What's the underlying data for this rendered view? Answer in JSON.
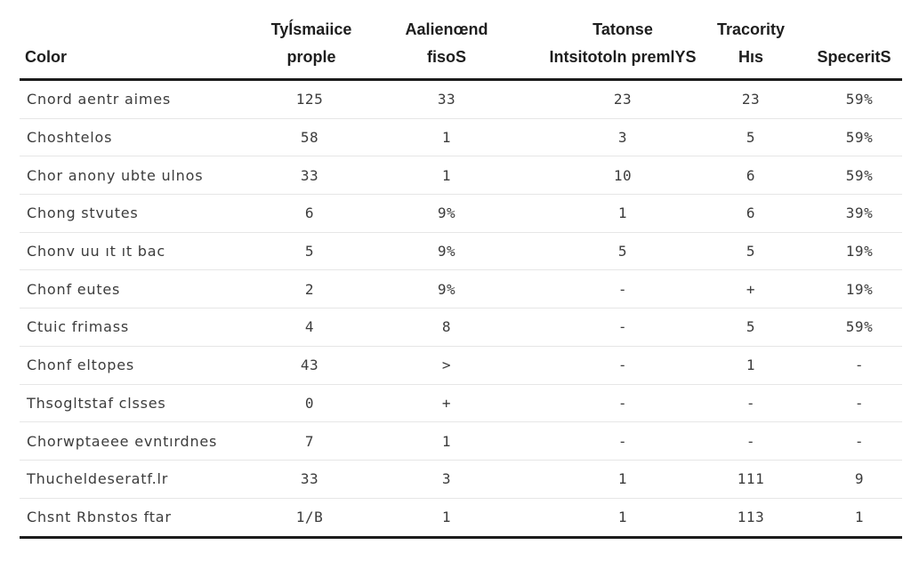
{
  "table": {
    "headers": [
      {
        "line1": "",
        "line2": "Color"
      },
      {
        "line1": "Tyĺsmaiice",
        "line2": "prople"
      },
      {
        "line1": "Aalienœnd",
        "line2": "fisoS"
      },
      {
        "line1": "Tatonse",
        "line2": "Intsitotoln premlYS"
      },
      {
        "line1": "Tracority",
        "line2": "Hıs"
      },
      {
        "line1": "",
        "line2": "SpeceritS"
      }
    ],
    "rows": [
      [
        "Cnord aentr aimes",
        "125",
        "33",
        "23",
        "23",
        "59%"
      ],
      [
        "Choshtelos",
        "58",
        "1",
        "3",
        "5",
        "59%"
      ],
      [
        "Chor anony ubte ulnos",
        "33",
        "1",
        "10",
        "6",
        "59%"
      ],
      [
        "Chong stvutes",
        "6",
        "9%",
        "1",
        "6",
        "39%"
      ],
      [
        "Chonv uu ıt ıt bac",
        "5",
        "9%",
        "5",
        "5",
        "19%"
      ],
      [
        "Chonf eutes",
        "2",
        "9%",
        "-",
        "+",
        "19%"
      ],
      [
        "Ctuic frimass",
        "4",
        "8",
        "-",
        "5",
        "59%"
      ],
      [
        "Chonf eltopes",
        "43",
        ">",
        "-",
        "1",
        "-"
      ],
      [
        "Thsogltstaf clsses",
        "0",
        "+",
        "-",
        "-",
        "-"
      ],
      [
        "Chorwptaeee evntırdnes",
        "7",
        "1",
        "-",
        "-",
        "-"
      ],
      [
        "Thucheldeseratf.lr",
        "33",
        "3",
        "1",
        "111",
        "9"
      ],
      [
        "Chsnt Rbnstos ftar",
        "1/B",
        "1",
        "1",
        "113",
        "1"
      ]
    ]
  }
}
